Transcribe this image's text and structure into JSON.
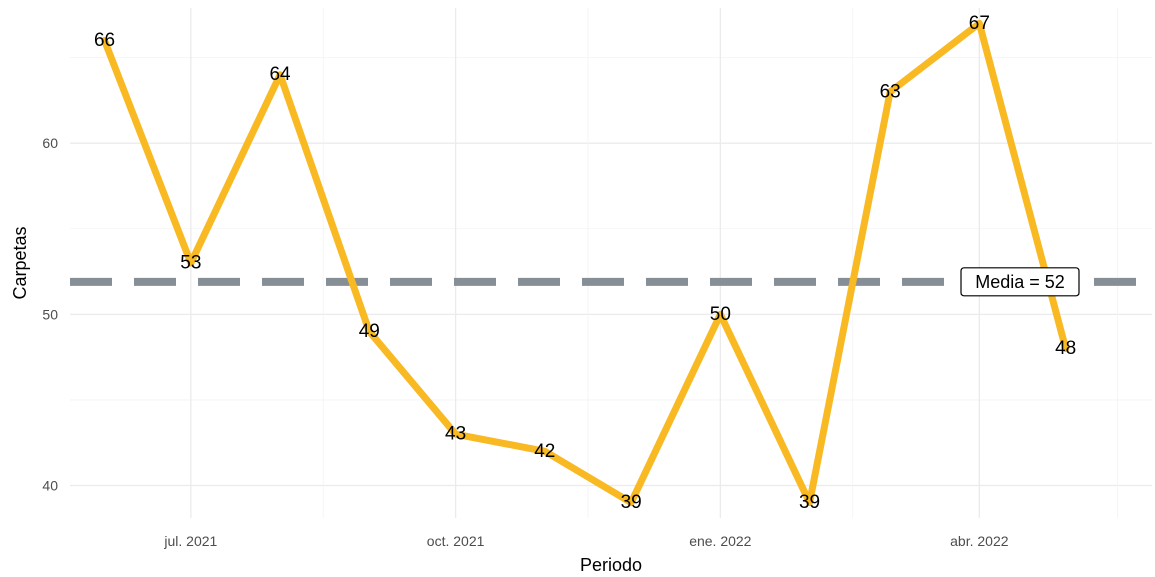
{
  "chart_data": {
    "type": "line",
    "x": [
      "2021-06",
      "2021-07",
      "2021-08",
      "2021-09",
      "2021-10",
      "2021-11",
      "2021-12",
      "2022-01",
      "2022-02",
      "2022-03",
      "2022-04",
      "2022-05"
    ],
    "values": [
      66,
      53,
      64,
      49,
      43,
      42,
      39,
      50,
      39,
      63,
      67,
      48
    ],
    "value_labels": [
      "66",
      "53",
      "64",
      "49",
      "43",
      "42",
      "39",
      "50",
      "39",
      "63",
      "67",
      "48"
    ],
    "xlabel": "Periodo",
    "ylabel": "Carpetas",
    "x_ticks": [
      {
        "x": "2021-07",
        "label": "jul. 2021"
      },
      {
        "x": "2021-10",
        "label": "oct. 2021"
      },
      {
        "x": "2022-01",
        "label": "ene. 2022"
      },
      {
        "x": "2022-04",
        "label": "abr. 2022"
      }
    ],
    "y_ticks": [
      {
        "value": 40,
        "label": "40"
      },
      {
        "value": 50,
        "label": "50"
      },
      {
        "value": 60,
        "label": "60"
      }
    ],
    "ylim": [
      38.1,
      67.9
    ],
    "xlim": [
      "2021-05-20",
      "2022-05-31"
    ],
    "grid": true,
    "mean": {
      "value": 51.9,
      "label": "Media = 52"
    },
    "colors": {
      "line": "#F8B923",
      "mean_line": "#868E96",
      "grid": "#EBEBEB"
    }
  }
}
